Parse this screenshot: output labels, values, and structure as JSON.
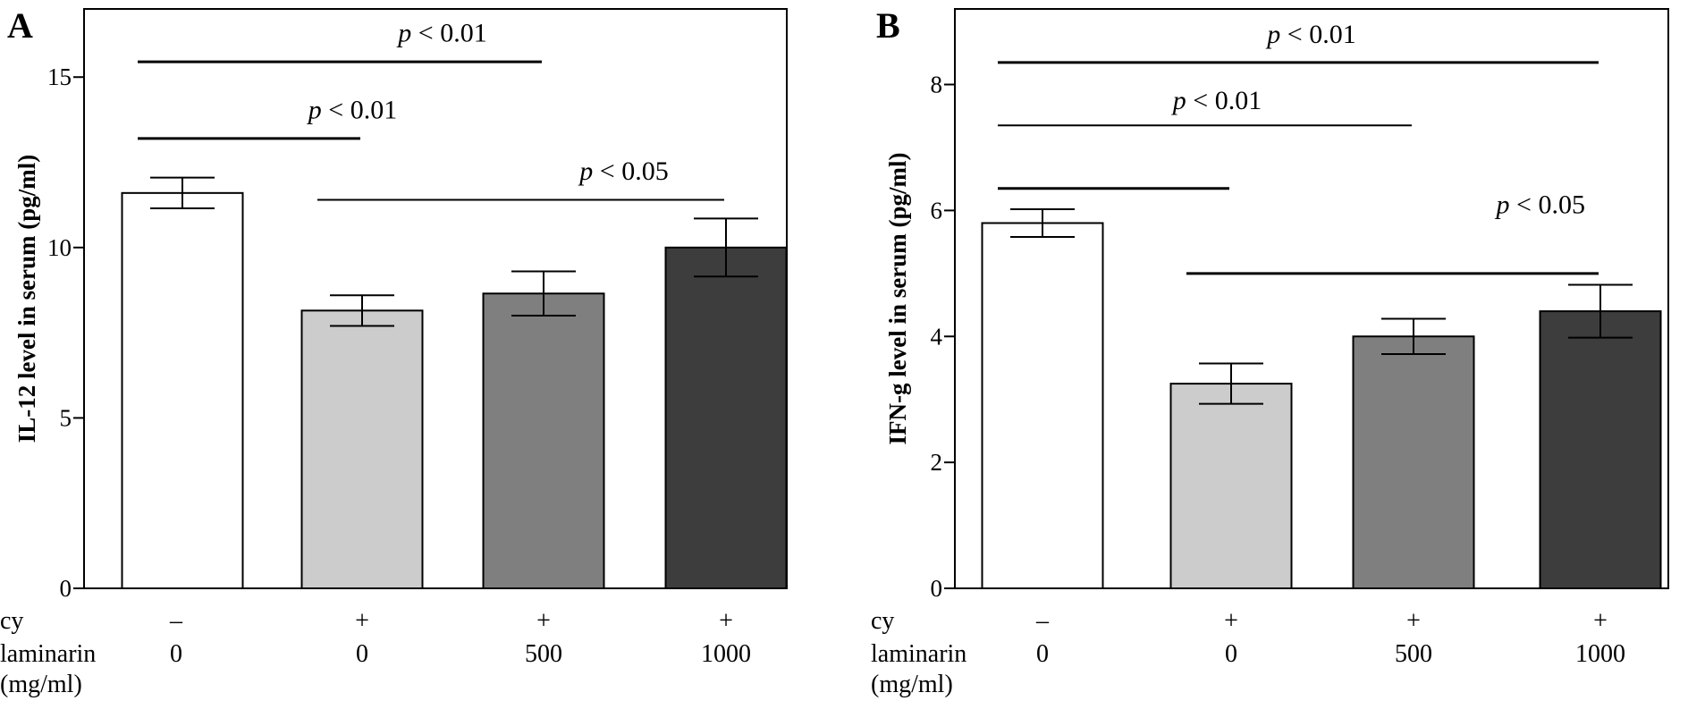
{
  "chart_data": [
    {
      "type": "bar",
      "panel": "A",
      "ylabel": "IL-12 level in serum (pg/ml)",
      "ylim": [
        0,
        17
      ],
      "yticks": [
        0,
        5,
        10,
        15
      ],
      "categories": [
        "0",
        "0",
        "500",
        "1000"
      ],
      "cy": [
        "–",
        "+",
        "+",
        "+"
      ],
      "row_labels": {
        "cy": "cy",
        "laminarin": "laminarin",
        "unit": "(mg/ml)"
      },
      "values": [
        11.6,
        8.15,
        8.65,
        10.0
      ],
      "errors": [
        0.45,
        0.45,
        0.65,
        0.85
      ],
      "colors": [
        "#ffffff",
        "#cccccc",
        "#7f7f7f",
        "#3d3d3d"
      ],
      "significance": [
        {
          "label": "p < 0.01",
          "from": 0,
          "to": 2,
          "y": 15.45,
          "text_y": 16.3,
          "text_at": 1.0,
          "thick": true
        },
        {
          "label": "p < 0.01",
          "from": 0,
          "to": 1,
          "y": 13.2,
          "text_y": 14.05,
          "text_at": 0.5,
          "thick": true
        },
        {
          "label": "p < 0.05",
          "from": 1,
          "to": 3,
          "y": 11.4,
          "text_y": 12.25,
          "text_at": 2.0,
          "thick": false
        }
      ]
    },
    {
      "type": "bar",
      "panel": "B",
      "ylabel": "IFN-g level in serum (pg/ml)",
      "ylim": [
        0,
        9.2
      ],
      "yticks": [
        0,
        2,
        4,
        6,
        8
      ],
      "categories": [
        "0",
        "0",
        "500",
        "1000"
      ],
      "cy": [
        "–",
        "+",
        "+",
        "+"
      ],
      "row_labels": {
        "cy": "cy",
        "laminarin": "laminarin",
        "unit": "(mg/ml)"
      },
      "values": [
        5.8,
        3.25,
        4.0,
        4.4
      ],
      "errors": [
        0.22,
        0.32,
        0.28,
        0.42
      ],
      "colors": [
        "#ffffff",
        "#cccccc",
        "#7f7f7f",
        "#3d3d3d"
      ],
      "significance": [
        {
          "label": "p < 0.01",
          "from": 0,
          "to": 3,
          "y": 8.35,
          "text_y": 8.8,
          "text_at": 1.0,
          "thick": true
        },
        {
          "label": "p < 0.01",
          "from": 0,
          "to": 2,
          "y": 7.35,
          "text_y": 7.75,
          "text_at": 0.5,
          "thick": false
        },
        {
          "label": "",
          "from": 0,
          "to": 1,
          "y": 6.35,
          "text_y": 6.35,
          "text_at": 0.5,
          "thick": true
        },
        {
          "label": "p < 0.05",
          "from": 1,
          "to": 3,
          "y": 5.0,
          "text_y": 6.1,
          "text_at": 2.25,
          "thick": true
        }
      ]
    }
  ]
}
